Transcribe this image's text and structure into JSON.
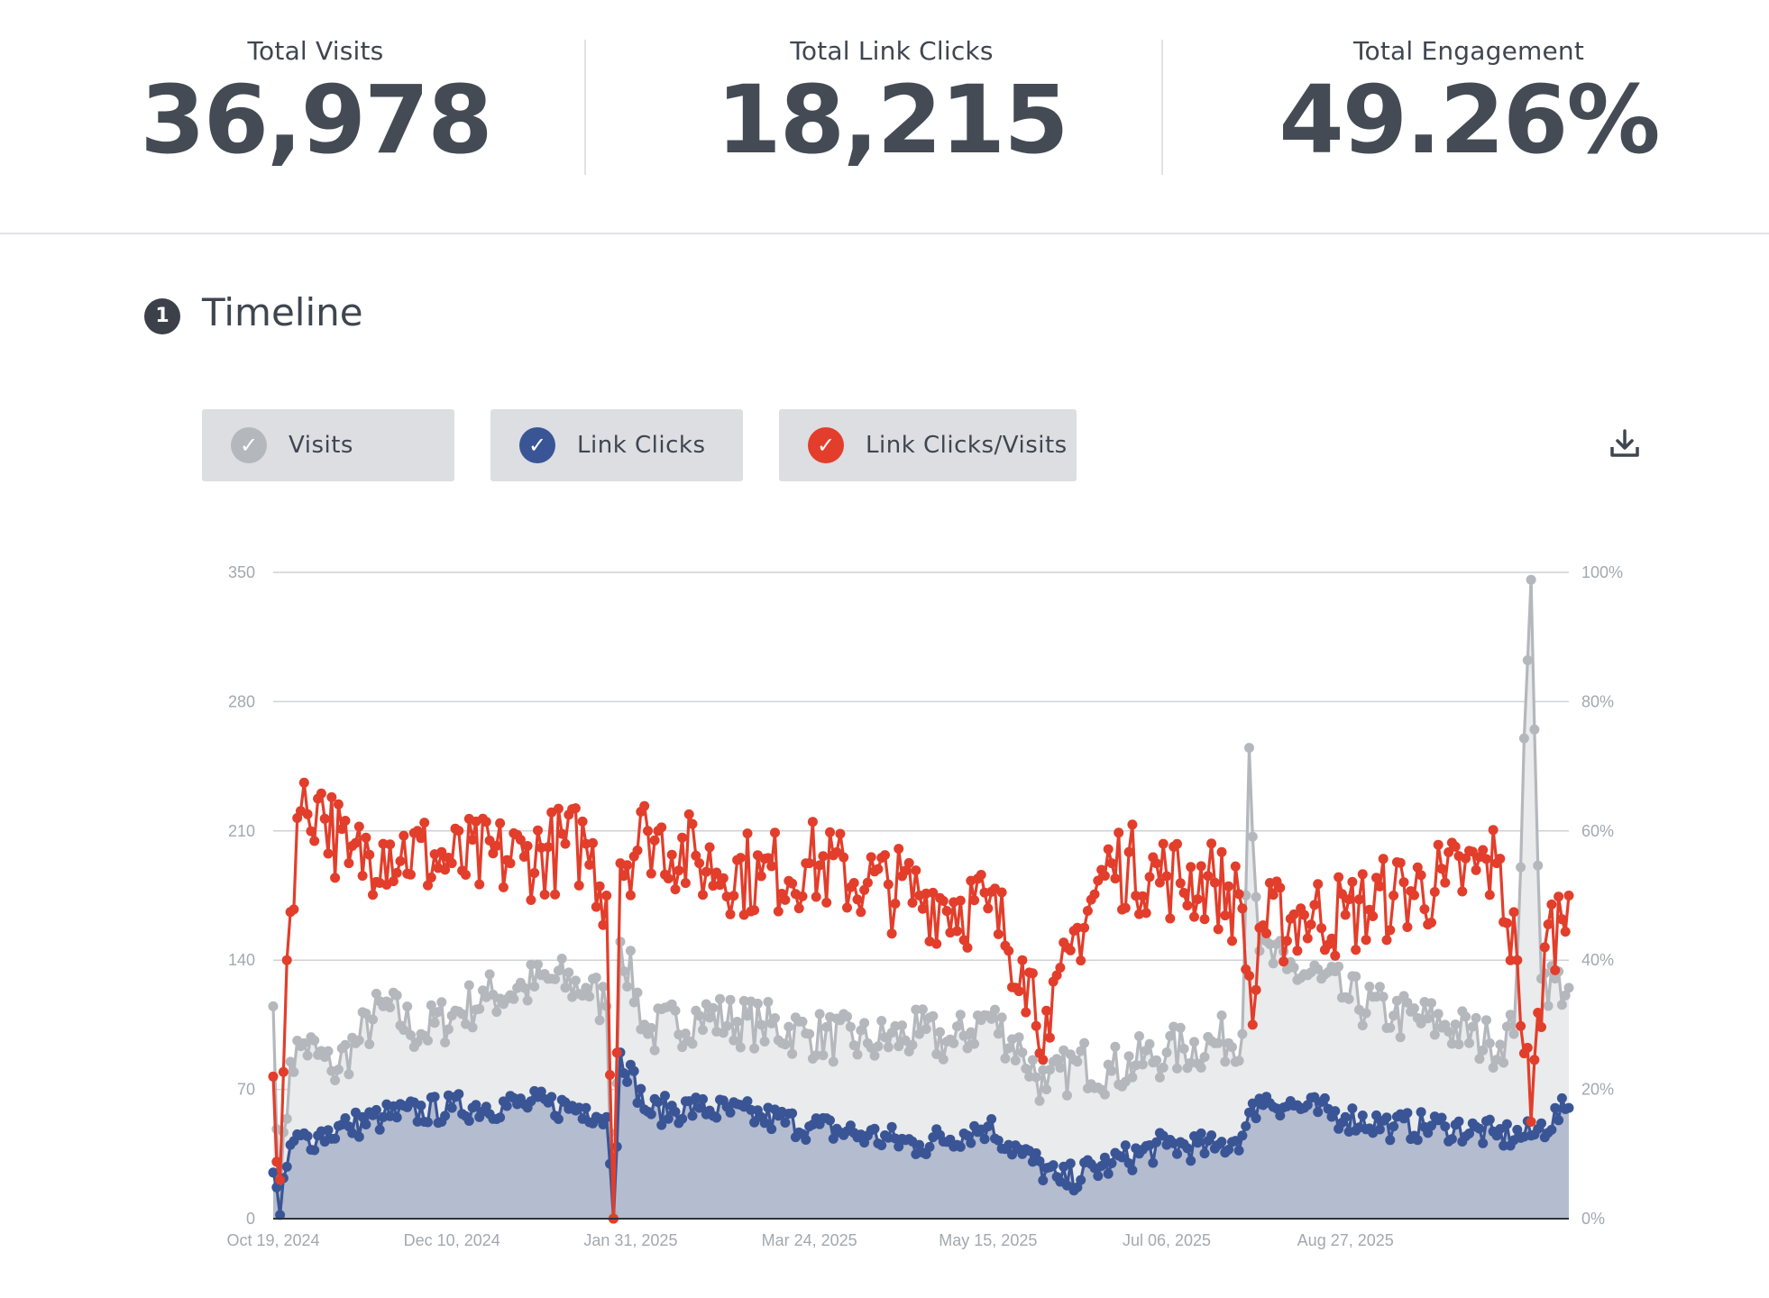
{
  "stats": [
    {
      "label": "Total Visits",
      "value": "36,978"
    },
    {
      "label": "Total Link Clicks",
      "value": "18,215"
    },
    {
      "label": "Total Engagement",
      "value": "49.26%"
    }
  ],
  "section": {
    "number": "1",
    "title": "Timeline"
  },
  "legend": [
    {
      "label": "Visits",
      "color": "#b4b8bd"
    },
    {
      "label": "Link Clicks",
      "color": "#3a5596"
    },
    {
      "label": "Link Clicks/Visits",
      "color": "#e23e2b"
    }
  ],
  "download_icon": "download-icon",
  "chart_data": {
    "type": "line",
    "x_start": "2024-10-19",
    "x_end": "2025-10-31",
    "x_ticks": [
      "Oct 19, 2024",
      "Dec 10, 2024",
      "Jan 31, 2025",
      "Mar 24, 2025",
      "May 15, 2025",
      "Jul 06, 2025",
      "Aug 27, 2025"
    ],
    "y_left_ticks": [
      "0",
      "70",
      "140",
      "210",
      "280",
      "350"
    ],
    "y_left_range": [
      0,
      350
    ],
    "y_right_ticks": [
      "0%",
      "20%",
      "40%",
      "60%",
      "80%",
      "100%"
    ],
    "y_right_range": [
      0,
      100
    ],
    "grid": true,
    "series": [
      {
        "name": "Visits",
        "axis": "left",
        "color": "#b4b8bd",
        "fill": "#eaebec",
        "anchors": [
          [
            "2024-10-19",
            115
          ],
          [
            "2024-10-21",
            10
          ],
          [
            "2024-10-24",
            85
          ],
          [
            "2024-10-28",
            95
          ],
          [
            "2024-11-05",
            80
          ],
          [
            "2024-11-12",
            95
          ],
          [
            "2024-11-20",
            115
          ],
          [
            "2024-12-01",
            100
          ],
          [
            "2024-12-10",
            110
          ],
          [
            "2024-12-20",
            120
          ],
          [
            "2024-12-31",
            125
          ],
          [
            "2025-01-08",
            130
          ],
          [
            "2025-01-18",
            125
          ],
          [
            "2025-01-24",
            115
          ],
          [
            "2025-01-26",
            2
          ],
          [
            "2025-01-28",
            150
          ],
          [
            "2025-02-05",
            100
          ],
          [
            "2025-02-20",
            110
          ],
          [
            "2025-03-10",
            105
          ],
          [
            "2025-03-24",
            100
          ],
          [
            "2025-04-10",
            95
          ],
          [
            "2025-04-25",
            100
          ],
          [
            "2025-05-05",
            95
          ],
          [
            "2025-05-15",
            110
          ],
          [
            "2025-05-25",
            90
          ],
          [
            "2025-06-01",
            70
          ],
          [
            "2025-06-10",
            85
          ],
          [
            "2025-06-20",
            80
          ],
          [
            "2025-07-06",
            90
          ],
          [
            "2025-07-20",
            95
          ],
          [
            "2025-07-28",
            100
          ],
          [
            "2025-07-30",
            255
          ],
          [
            "2025-08-02",
            145
          ],
          [
            "2025-08-10",
            135
          ],
          [
            "2025-08-20",
            130
          ],
          [
            "2025-08-27",
            120
          ],
          [
            "2025-09-10",
            110
          ],
          [
            "2025-09-25",
            105
          ],
          [
            "2025-10-08",
            95
          ],
          [
            "2025-10-15",
            100
          ],
          [
            "2025-10-20",
            346
          ],
          [
            "2025-10-23",
            130
          ],
          [
            "2025-10-31",
            125
          ]
        ]
      },
      {
        "name": "Link Clicks",
        "axis": "left",
        "color": "#3a5596",
        "fill": "#b4bccf",
        "anchors": [
          [
            "2024-10-19",
            25
          ],
          [
            "2024-10-21",
            2
          ],
          [
            "2024-10-24",
            40
          ],
          [
            "2024-11-01",
            45
          ],
          [
            "2024-11-10",
            50
          ],
          [
            "2024-11-20",
            55
          ],
          [
            "2024-12-10",
            60
          ],
          [
            "2024-12-31",
            62
          ],
          [
            "2025-01-18",
            60
          ],
          [
            "2025-01-24",
            55
          ],
          [
            "2025-01-26",
            0
          ],
          [
            "2025-01-28",
            90
          ],
          [
            "2025-02-05",
            58
          ],
          [
            "2025-02-20",
            60
          ],
          [
            "2025-03-10",
            55
          ],
          [
            "2025-03-24",
            50
          ],
          [
            "2025-04-10",
            45
          ],
          [
            "2025-04-25",
            40
          ],
          [
            "2025-05-15",
            50
          ],
          [
            "2025-05-25",
            35
          ],
          [
            "2025-06-05",
            20
          ],
          [
            "2025-06-20",
            30
          ],
          [
            "2025-07-06",
            40
          ],
          [
            "2025-07-20",
            38
          ],
          [
            "2025-07-28",
            45
          ],
          [
            "2025-08-02",
            65
          ],
          [
            "2025-08-15",
            60
          ],
          [
            "2025-08-27",
            55
          ],
          [
            "2025-09-10",
            50
          ],
          [
            "2025-09-25",
            50
          ],
          [
            "2025-10-10",
            45
          ],
          [
            "2025-10-20",
            45
          ],
          [
            "2025-10-31",
            60
          ]
        ]
      },
      {
        "name": "Link Clicks/Visits",
        "axis": "right",
        "color": "#e23e2b",
        "fill": "none",
        "anchors": [
          [
            "2024-10-19",
            22
          ],
          [
            "2024-10-21",
            6
          ],
          [
            "2024-10-23",
            40
          ],
          [
            "2024-10-26",
            62
          ],
          [
            "2024-11-01",
            65
          ],
          [
            "2024-11-10",
            55
          ],
          [
            "2024-11-20",
            58
          ],
          [
            "2024-12-10",
            55
          ],
          [
            "2024-12-31",
            56
          ],
          [
            "2025-01-18",
            58
          ],
          [
            "2025-01-24",
            50
          ],
          [
            "2025-01-26",
            0
          ],
          [
            "2025-01-28",
            55
          ],
          [
            "2025-02-05",
            60
          ],
          [
            "2025-02-20",
            55
          ],
          [
            "2025-03-10",
            53
          ],
          [
            "2025-03-24",
            55
          ],
          [
            "2025-04-10",
            52
          ],
          [
            "2025-04-25",
            50
          ],
          [
            "2025-05-15",
            48
          ],
          [
            "2025-05-25",
            40
          ],
          [
            "2025-06-02",
            28
          ],
          [
            "2025-06-10",
            45
          ],
          [
            "2025-06-20",
            55
          ],
          [
            "2025-07-06",
            53
          ],
          [
            "2025-07-20",
            52
          ],
          [
            "2025-07-28",
            48
          ],
          [
            "2025-07-31",
            30
          ],
          [
            "2025-08-02",
            45
          ],
          [
            "2025-08-15",
            47
          ],
          [
            "2025-08-27",
            47
          ],
          [
            "2025-09-10",
            50
          ],
          [
            "2025-09-25",
            52
          ],
          [
            "2025-10-10",
            55
          ],
          [
            "2025-10-16",
            40
          ],
          [
            "2025-10-20",
            15
          ],
          [
            "2025-10-24",
            42
          ],
          [
            "2025-10-31",
            50
          ]
        ]
      }
    ]
  }
}
